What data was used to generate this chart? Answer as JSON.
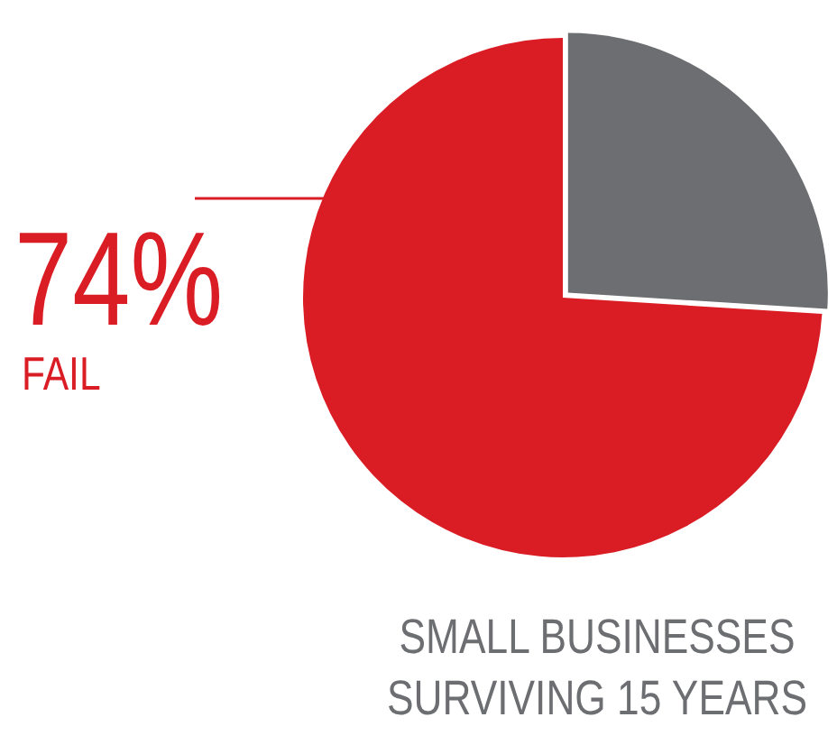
{
  "chart_data": {
    "type": "pie",
    "categories": [
      null,
      "FAIL"
    ],
    "values": [
      26,
      74
    ],
    "colors": [
      "#6d6e71",
      "#da1c24"
    ],
    "value_labels": [
      null,
      "74%"
    ],
    "legend": false,
    "annotations": [
      "SMALL BUSINESSES SURVIVING 15 YEARS"
    ]
  }
}
